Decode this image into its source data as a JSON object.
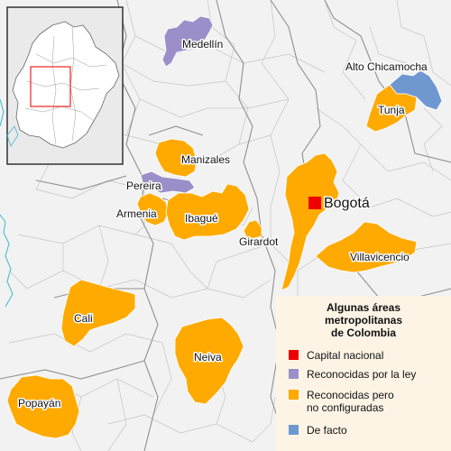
{
  "legend": {
    "title_lines": [
      "Algunas áreas",
      "metropolitanas",
      "de Colombia"
    ],
    "items": [
      {
        "label": "Capital nacional",
        "color": "#ee0000"
      },
      {
        "label": "Reconocidas por la ley",
        "color": "#9b8fc9"
      },
      {
        "label": "Reconocidas pero\nno configuradas",
        "color": "#ffaa00"
      },
      {
        "label": "De facto",
        "color": "#6f97d0"
      }
    ]
  },
  "labels": {
    "medellin": "Medellín",
    "alto_chicamocha": "Alto Chicamocha",
    "tunja": "Tunja",
    "manizales": "Manizales",
    "pereira": "Pereira",
    "armenia": "Armenia",
    "ibague": "Ibagué",
    "girardot": "Girardot",
    "bogota": "Bogotá",
    "villavicencio": "Villavicencio",
    "cali": "Cali",
    "neiva": "Neiva",
    "popayan": "Popayán"
  },
  "colors": {
    "background": "#f2f2f2",
    "border": "#bdbdbd",
    "department_border": "#8f8f8f",
    "water": "#3fb8cf",
    "capital": "#ee0000",
    "legal": "#9b8fc9",
    "unconfigured": "#ffaa00",
    "de_facto": "#6f97d0",
    "inset_highlight": "#ee2222"
  }
}
